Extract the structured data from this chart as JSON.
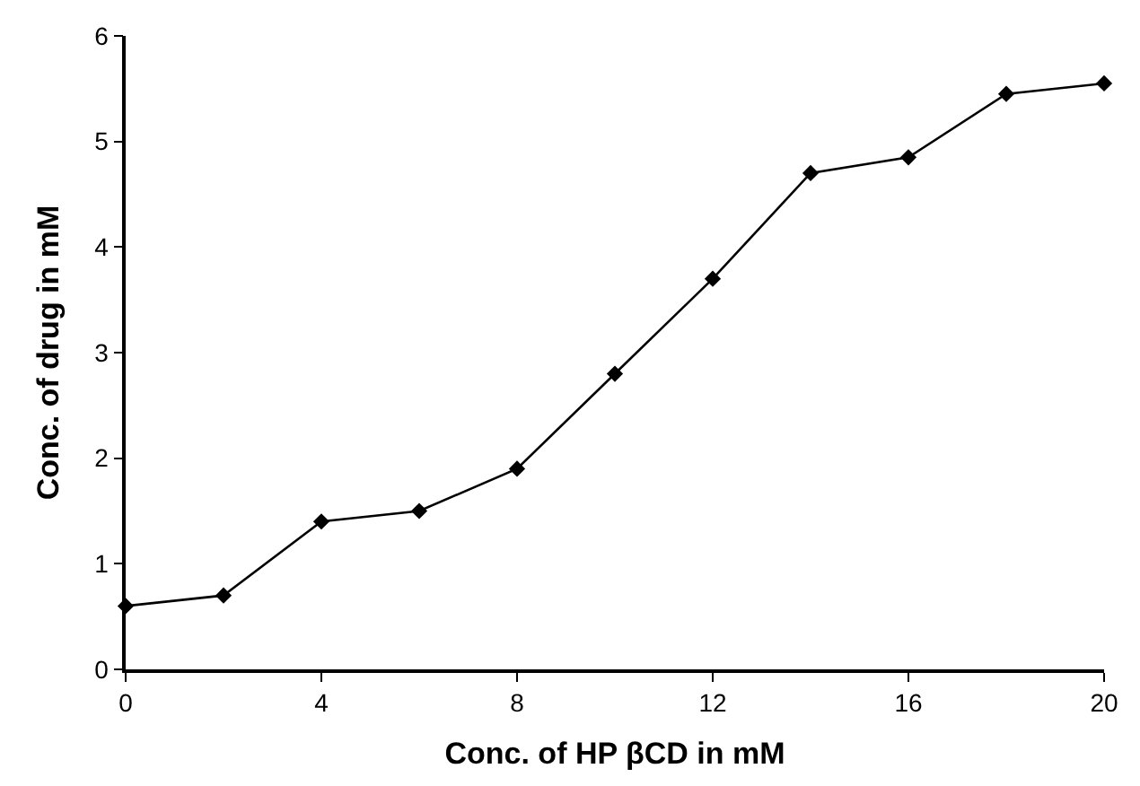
{
  "chart_data": {
    "type": "line",
    "xlabel": "Conc. of HP βCD in mM",
    "ylabel": "Conc. of drug in mM",
    "x": [
      0,
      2,
      4,
      6,
      8,
      10,
      12,
      14,
      16,
      18,
      20
    ],
    "series": [
      {
        "color": "#000000",
        "values": [
          0.6,
          0.7,
          1.4,
          1.5,
          1.9,
          2.8,
          3.7,
          4.7,
          4.85,
          5.45,
          5.55
        ]
      }
    ],
    "xlim": [
      0,
      20
    ],
    "xticks": [
      0,
      4,
      8,
      12,
      16,
      20
    ],
    "ylim": [
      0,
      6
    ],
    "yticks": [
      0,
      1,
      2,
      3,
      4,
      5,
      6
    ],
    "legend": false,
    "marker": "diamond",
    "line_style": "solid"
  }
}
